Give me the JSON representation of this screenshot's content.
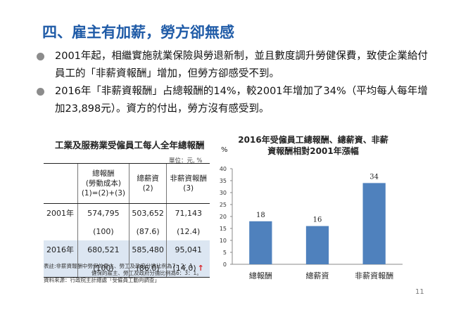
{
  "title": "四、雇主有加薪，勞方卻無感",
  "bullets": [
    "2001年起，相繼實施就業保險與勞退新制，並且數度調升勞健保費，致使企業給付員工的「非薪資報酬」增加，但勞方卻感受不到。",
    "2016年「非薪資報酬」占總報酬的14%，較2001年增加了34%（平均每人每年增加23,898元）。資方的付出，勞方沒有感受到。"
  ],
  "table": {
    "title": "工業及服務業受僱員工每人全年總報酬",
    "unit": "單位：元, %",
    "headers": [
      "總報酬\n(勞動成本)\n(1)=(2)+(3)",
      "總薪資\n(2)",
      "非薪資報酬\n(3)"
    ],
    "rows": [
      {
        "year": "2001年",
        "values": [
          "574,795",
          "503,652",
          "71,143"
        ],
        "pct": [
          "(100)",
          "(87.6)",
          "(12.4)"
        ]
      },
      {
        "year": "2016年",
        "values": [
          "680,521",
          "585,480",
          "95,041"
        ],
        "pct": [
          "(100)",
          "(86.0)",
          "(14.0)"
        ]
      }
    ],
    "arrow": "↑",
    "notes": [
      "表註:非薪資報酬中勞保的雇主、勞工及政府分擔比例為7：2：1",
      "健保的雇主、勞工及政府分擔比例為6：3：1。",
      "資料來源：行政院主計總處「受僱員工動向調查」"
    ]
  },
  "chart_data": {
    "type": "bar",
    "title": "2016年受僱員工總報酬、總薪資、非薪資報酬相對2001年漲幅",
    "ylabel": "%",
    "categories": [
      "總報酬",
      "總薪資",
      "非薪資報酬"
    ],
    "values": [
      18,
      16,
      34
    ],
    "ylim": [
      0,
      40
    ],
    "yticks": [
      0,
      5,
      10,
      15,
      20,
      25,
      30,
      35,
      40
    ],
    "bar_color": "#4f81bd",
    "grid": false
  },
  "page_number": "11",
  "colors": {
    "title": "#1f5ba7",
    "highlight_row": "#dce6f2",
    "arrow": "#d9262c",
    "bar": "#4f81bd"
  }
}
